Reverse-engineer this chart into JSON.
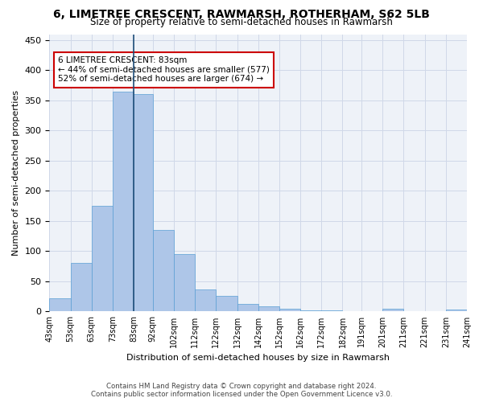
{
  "title": "6, LIMETREE CRESCENT, RAWMARSH, ROTHERHAM, S62 5LB",
  "subtitle": "Size of property relative to semi-detached houses in Rawmarsh",
  "xlabel": "Distribution of semi-detached houses by size in Rawmarsh",
  "ylabel": "Number of semi-detached properties",
  "property_size": 83,
  "property_label": "6 LIMETREE CRESCENT: 83sqm",
  "pct_smaller": 44,
  "n_smaller": 577,
  "pct_larger": 52,
  "n_larger": 674,
  "bin_labels": [
    "43sqm",
    "53sqm",
    "63sqm",
    "73sqm",
    "83sqm",
    "92sqm",
    "102sqm",
    "112sqm",
    "122sqm",
    "132sqm",
    "142sqm",
    "152sqm",
    "162sqm",
    "172sqm",
    "182sqm",
    "191sqm",
    "201sqm",
    "211sqm",
    "221sqm",
    "231sqm",
    "241sqm"
  ],
  "bin_edges": [
    43,
    53,
    63,
    73,
    83,
    92,
    102,
    112,
    122,
    132,
    142,
    152,
    162,
    172,
    182,
    191,
    201,
    211,
    221,
    231,
    241
  ],
  "bar_values": [
    22,
    80,
    175,
    365,
    360,
    135,
    95,
    37,
    26,
    12,
    9,
    5,
    2,
    2,
    1,
    0,
    5,
    1,
    0,
    3
  ],
  "bar_color": "#aec6e8",
  "bar_edge_color": "#5a9fd4",
  "marker_color": "#1f4e79",
  "ylim": [
    0,
    460
  ],
  "yticks": [
    0,
    50,
    100,
    150,
    200,
    250,
    300,
    350,
    400,
    450
  ],
  "grid_color": "#d0d8e8",
  "bg_color": "#eef2f8",
  "annotation_box_color": "#cc0000",
  "footer": "Contains HM Land Registry data © Crown copyright and database right 2024.\nContains public sector information licensed under the Open Government Licence v3.0."
}
